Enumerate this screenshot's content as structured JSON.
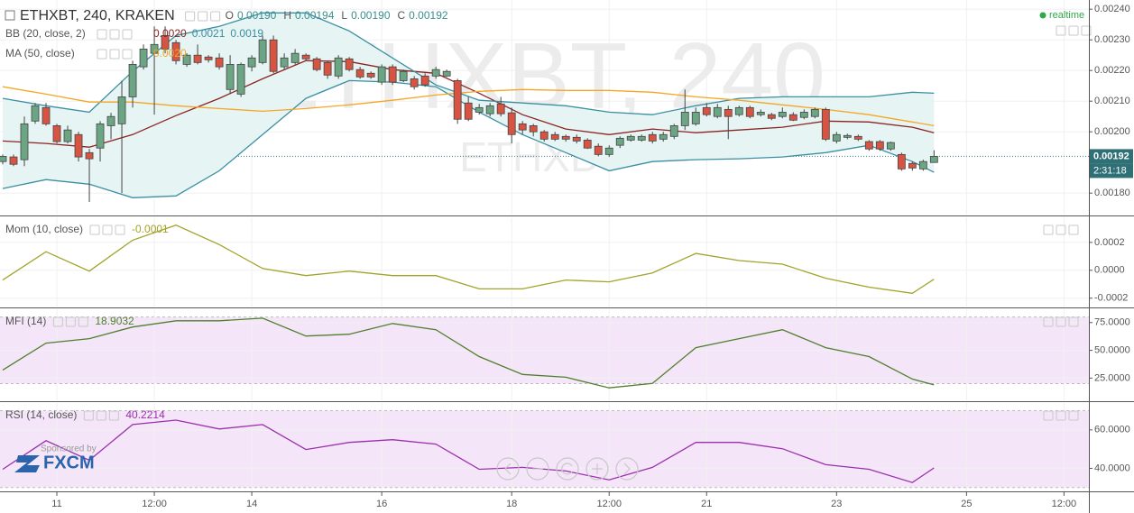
{
  "chart_data": [
    {
      "type": "candlestick",
      "title": "ETHXBT, 240, KRAKEN",
      "watermark": "ETHXBT, 240",
      "watermark_sub": "ETHXBT",
      "ohlc_letters": [
        "O",
        "H",
        "L",
        "C"
      ],
      "ohlc_value_labels": [
        "0.00190",
        "0.00194",
        "0.00190",
        "0.00192"
      ],
      "status": "realtime",
      "last_label": "0.00192",
      "countdown": "2:31:18",
      "up_color": "#6ba583",
      "down_color": "#d75442",
      "grid": true,
      "ylim": [
        0.00173,
        0.00243
      ],
      "yticks": [
        {
          "value": 0.0024,
          "label": "0.00240"
        },
        {
          "value": 0.0023,
          "label": "0.00230"
        },
        {
          "value": 0.0022,
          "label": "0.00220"
        },
        {
          "value": 0.0021,
          "label": "0.00210"
        },
        {
          "value": 0.002,
          "label": "0.00200"
        },
        {
          "value": 0.0018,
          "label": "0.00180"
        }
      ],
      "x": [
        0,
        1,
        2,
        3,
        4,
        5,
        6,
        7,
        8,
        9,
        10,
        11,
        12,
        13,
        14,
        15,
        16,
        17,
        18,
        19,
        20,
        21,
        22,
        23,
        24,
        25,
        26,
        27,
        28,
        29,
        30,
        31,
        32,
        33,
        34,
        35,
        36,
        37,
        38,
        39,
        40,
        41,
        42,
        43,
        44,
        45,
        46,
        47,
        48,
        49,
        50,
        51,
        52,
        53,
        54,
        55,
        56,
        57,
        58,
        59,
        60,
        61,
        62,
        63,
        64,
        65,
        66,
        67,
        68,
        69,
        70,
        71,
        72,
        73,
        74,
        75,
        76,
        77,
        78,
        79,
        80,
        81,
        82,
        83,
        84,
        85,
        86
      ],
      "open": [
        0.001903,
        0.001918,
        0.001909,
        0.002035,
        0.002079,
        0.00202,
        0.001968,
        0.001991,
        0.001932,
        0.001947,
        0.00202,
        0.002026,
        0.002114,
        0.002212,
        0.002256,
        0.002314,
        0.002291,
        0.00222,
        0.00225,
        0.002244,
        0.002241,
        0.002138,
        0.002123,
        0.002212,
        0.002226,
        0.0023,
        0.002212,
        0.002226,
        0.00225,
        0.002238,
        0.002226,
        0.002182,
        0.002238,
        0.002203,
        0.002191,
        0.002162,
        0.002212,
        0.002167,
        0.002173,
        0.002182,
        0.002182,
        0.002182,
        0.002167,
        0.002094,
        0.002064,
        0.002059,
        0.002091,
        0.002062,
        0.002026,
        0.00202,
        0.002,
        0.001991,
        0.001985,
        0.001982,
        0.001973,
        0.001953,
        0.001926,
        0.001956,
        0.001973,
        0.001973,
        0.001991,
        0.001976,
        0.001985,
        0.00202,
        0.002026,
        0.002079,
        0.00205,
        0.002073,
        0.002056,
        0.002079,
        0.002056,
        0.002056,
        0.00205,
        0.002056,
        0.002047,
        0.00205,
        0.002073,
        0.00197,
        0.001982,
        0.001985,
        0.001968,
        0.001968,
        0.001944,
        0.001926,
        0.001897,
        0.001879,
        0.0019
      ],
      "high": [
        0.001926,
        0.001926,
        0.00205,
        0.002094,
        0.002094,
        0.002026,
        0.00202,
        0.002,
        0.001944,
        0.002035,
        0.002062,
        0.002167,
        0.002232,
        0.002285,
        0.002344,
        0.002344,
        0.0023,
        0.002256,
        0.002285,
        0.00225,
        0.002256,
        0.00225,
        0.002226,
        0.00225,
        0.002314,
        0.002314,
        0.002256,
        0.00227,
        0.002256,
        0.002244,
        0.002232,
        0.00225,
        0.002244,
        0.002212,
        0.002197,
        0.00222,
        0.00222,
        0.002203,
        0.002182,
        0.002191,
        0.002212,
        0.002203,
        0.002173,
        0.002114,
        0.002091,
        0.002094,
        0.002114,
        0.002079,
        0.002035,
        0.002026,
        0.002006,
        0.002,
        0.001991,
        0.001991,
        0.001979,
        0.001962,
        0.001956,
        0.001985,
        0.001991,
        0.001991,
        0.002,
        0.002,
        0.002026,
        0.002138,
        0.002079,
        0.002094,
        0.002091,
        0.002085,
        0.002085,
        0.002085,
        0.002073,
        0.002062,
        0.002079,
        0.002064,
        0.002073,
        0.002079,
        0.002079,
        0.002,
        0.001994,
        0.001991,
        0.001973,
        0.001973,
        0.001968,
        0.001932,
        0.001903,
        0.001909,
        0.00194
      ],
      "low": [
        0.001894,
        0.001888,
        0.001888,
        0.002026,
        0.00202,
        0.001962,
        0.001962,
        0.001903,
        0.001771,
        0.001903,
        0.001976,
        0.0018,
        0.002079,
        0.002203,
        0.002056,
        0.002256,
        0.00222,
        0.002212,
        0.00222,
        0.002226,
        0.002203,
        0.002123,
        0.002114,
        0.002197,
        0.00222,
        0.002191,
        0.002203,
        0.00222,
        0.002232,
        0.002197,
        0.002173,
        0.002173,
        0.002197,
        0.002173,
        0.002173,
        0.002153,
        0.002153,
        0.002162,
        0.002138,
        0.002147,
        0.002173,
        0.002179,
        0.002026,
        0.002035,
        0.002056,
        0.00205,
        0.00205,
        0.001962,
        0.001991,
        0.001985,
        0.001968,
        0.00197,
        0.001968,
        0.001962,
        0.001944,
        0.00192,
        0.001918,
        0.001947,
        0.001968,
        0.001968,
        0.001962,
        0.001968,
        0.001976,
        0.002006,
        0.00202,
        0.00205,
        0.002044,
        0.001976,
        0.00205,
        0.002044,
        0.00205,
        0.002038,
        0.002044,
        0.002035,
        0.002041,
        0.002044,
        0.00197,
        0.001962,
        0.001976,
        0.00197,
        0.001938,
        0.001938,
        0.001938,
        0.001873,
        0.001873,
        0.001873,
        0.0019
      ],
      "close": [
        0.00192,
        0.001894,
        0.002026,
        0.002085,
        0.002026,
        0.001968,
        0.002006,
        0.001918,
        0.001912,
        0.002026,
        0.00205,
        0.002114,
        0.00222,
        0.00227,
        0.002285,
        0.00227,
        0.002232,
        0.00225,
        0.002226,
        0.002235,
        0.002212,
        0.00222,
        0.00222,
        0.002241,
        0.0023,
        0.002197,
        0.002241,
        0.002256,
        0.002238,
        0.002203,
        0.002185,
        0.002241,
        0.002203,
        0.002179,
        0.002179,
        0.002212,
        0.002162,
        0.002197,
        0.002147,
        0.002153,
        0.002203,
        0.002197,
        0.002041,
        0.002041,
        0.002079,
        0.002085,
        0.002059,
        0.001991,
        0.002006,
        0.002,
        0.001976,
        0.001976,
        0.001976,
        0.00197,
        0.001947,
        0.001926,
        0.001947,
        0.001979,
        0.001985,
        0.001985,
        0.00197,
        0.001991,
        0.00202,
        0.002064,
        0.002064,
        0.002056,
        0.002079,
        0.00205,
        0.002079,
        0.00205,
        0.002064,
        0.002044,
        0.002064,
        0.002038,
        0.002064,
        0.002073,
        0.001976,
        0.001991,
        0.001988,
        0.001976,
        0.001944,
        0.001944,
        0.001965,
        0.001879,
        0.001882,
        0.001903,
        0.00192
      ],
      "line_x": [
        0,
        4,
        8,
        12,
        16,
        20,
        24,
        28,
        32,
        36,
        40,
        44,
        48,
        52,
        56,
        60,
        64,
        68,
        72,
        76,
        80,
        84,
        86
      ],
      "overlays": [
        {
          "name": "BB (20, close, 2)",
          "fill": "#e6f4f4",
          "value_labels": [
            "0.0020",
            "0.0021",
            "0.0019"
          ],
          "lines": [
            {
              "color": "#8b2323",
              "values": [
                0.00197,
                0.001962,
                0.00195,
                0.001991,
                0.002053,
                0.002109,
                0.002173,
                0.002232,
                0.002229,
                0.002203,
                0.002191,
                0.002126,
                0.002056,
                0.002009,
                0.001991,
                0.002009,
                0.001997,
                0.002006,
                0.002015,
                0.002035,
                0.002032,
                0.002015,
                0.001997
              ]
            },
            {
              "color": "#3a8fa3",
              "values": [
                0.002109,
                0.002085,
                0.002064,
                0.002197,
                0.002314,
                0.002344,
                0.002388,
                0.002388,
                0.002329,
                0.002241,
                0.002153,
                0.002103,
                0.002094,
                0.002085,
                0.002064,
                0.002056,
                0.002085,
                0.002109,
                0.002114,
                0.002114,
                0.002114,
                0.002129,
                0.002126
              ]
            },
            {
              "color": "#3a8fa3",
              "values": [
                0.001815,
                0.001844,
                0.001829,
                0.001785,
                0.001791,
                0.001873,
                0.001991,
                0.002109,
                0.002167,
                0.002162,
                0.002147,
                0.002064,
                0.001991,
                0.001932,
                0.001873,
                0.001903,
                0.001909,
                0.001912,
                0.001918,
                0.001932,
                0.001956,
                0.001903,
                0.001868
              ]
            }
          ]
        },
        {
          "name": "MA (50, close)",
          "value_labels": [
            "0.0020"
          ],
          "lines": [
            {
              "color": "#f5a623",
              "values": [
                0.002147,
                0.002123,
                0.002097,
                0.002097,
                0.002085,
                0.002076,
                0.002067,
                0.002076,
                0.002088,
                0.002103,
                0.00212,
                0.002132,
                0.002138,
                0.002135,
                0.002135,
                0.002129,
                0.002114,
                0.002103,
                0.002088,
                0.002073,
                0.002056,
                0.002032,
                0.00202
              ]
            }
          ]
        }
      ]
    },
    {
      "type": "line",
      "title": "Mom (10, close)",
      "value_label": "-0.0001",
      "color": "#a3a32a",
      "grid": true,
      "ylim": [
        -0.00026,
        0.00038
      ],
      "yticks": [
        {
          "value": 0.0002,
          "label": "0.0002"
        },
        {
          "value": 0,
          "label": "0.0000"
        },
        {
          "value": -0.0002,
          "label": "-0.0002"
        }
      ],
      "x": [
        0,
        4,
        8,
        12,
        16,
        20,
        24,
        28,
        32,
        36,
        40,
        44,
        48,
        52,
        56,
        60,
        64,
        68,
        72,
        76,
        80,
        84,
        86
      ],
      "values": [
        -7e-05,
        0.000133,
        -6e-06,
        0.000216,
        0.000324,
        0.000184,
        1.3e-05,
        -3.8e-05,
        -6e-06,
        -3.8e-05,
        -3.8e-05,
        -0.000133,
        -0.000133,
        -7e-05,
        -8.3e-05,
        -1.9e-05,
        0.000121,
        7e-05,
        4.4e-05,
        -5.7e-05,
        -0.000121,
        -0.000165,
        -6.4e-05
      ]
    },
    {
      "type": "line",
      "title": "MFI (14)",
      "value_label": "18.9032",
      "color": "#4f7f2f",
      "grid": true,
      "band": [
        20,
        80
      ],
      "band_color": "#f4e6f8",
      "ylim": [
        5,
        87
      ],
      "yticks": [
        {
          "value": 75,
          "label": "75.0000"
        },
        {
          "value": 50,
          "label": "50.0000"
        },
        {
          "value": 25,
          "label": "25.0000"
        }
      ],
      "x": [
        0,
        4,
        8,
        12,
        16,
        20,
        24,
        28,
        32,
        36,
        40,
        44,
        48,
        52,
        56,
        60,
        64,
        68,
        72,
        76,
        80,
        84,
        86
      ],
      "values": [
        32.3,
        56.5,
        60.5,
        71,
        76.6,
        76.6,
        79,
        62.9,
        64.5,
        74.2,
        68.6,
        44.4,
        28.3,
        25.8,
        16.2,
        20.2,
        52.4,
        60.5,
        68.6,
        52.4,
        44.4,
        24.2,
        18.9032
      ]
    },
    {
      "type": "line",
      "title": "RSI (14, close)",
      "value_label": "40.2214",
      "color": "#9b2fae",
      "grid": true,
      "band": [
        30,
        70
      ],
      "band_color": "#f4e6f8",
      "ylim": [
        28,
        74
      ],
      "yticks": [
        {
          "value": 60,
          "label": "60.0000"
        },
        {
          "value": 40,
          "label": "40.0000"
        }
      ],
      "x": [
        0,
        4,
        8,
        12,
        16,
        20,
        24,
        28,
        32,
        36,
        40,
        44,
        48,
        52,
        56,
        60,
        64,
        68,
        72,
        76,
        80,
        84,
        86
      ],
      "values": [
        39.5,
        54.4,
        44.2,
        62.8,
        65.1,
        60.5,
        62.8,
        49.8,
        53.5,
        54.9,
        52.6,
        39.5,
        40.5,
        38.6,
        34,
        40.5,
        53.5,
        53.5,
        50.2,
        41.9,
        39.5,
        32.6,
        40.2214
      ]
    }
  ],
  "time_axis": {
    "xlim": [
      -0.25,
      100.3
    ],
    "xticks": [
      {
        "value": 5,
        "label": "11"
      },
      {
        "value": 14,
        "label": "12:00"
      },
      {
        "value": 23,
        "label": "14"
      },
      {
        "value": 35,
        "label": "16"
      },
      {
        "value": 47,
        "label": "18"
      },
      {
        "value": 56,
        "label": "12:00"
      },
      {
        "value": 65,
        "label": "21"
      },
      {
        "value": 77,
        "label": "23"
      },
      {
        "value": 89,
        "label": "25"
      },
      {
        "value": 98,
        "label": "12:00"
      }
    ]
  },
  "sponsor": {
    "caption": "Sponsored by",
    "name": "FXCM"
  }
}
